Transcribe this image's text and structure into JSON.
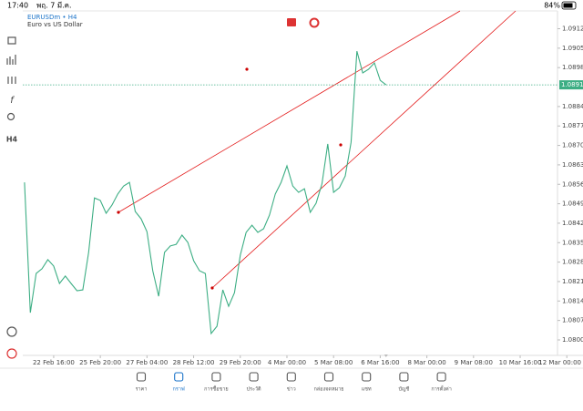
{
  "status_bar": {
    "time": "17:40",
    "date": "พฤ. 7 มี.ค.",
    "battery": "84%"
  },
  "chart_data": {
    "type": "line",
    "title": "EURUSDm • H4",
    "subtitle": "Euro vs US Dollar",
    "x": [
      0,
      1,
      2,
      3,
      4,
      5,
      6,
      7,
      8,
      9,
      10,
      11,
      12,
      13,
      14,
      15,
      16,
      17,
      18,
      19,
      20,
      21,
      22,
      23,
      24,
      25,
      26,
      27,
      28,
      29,
      30,
      31,
      32,
      33,
      34,
      35,
      36,
      37,
      38,
      39,
      40,
      41,
      42,
      43,
      44,
      45,
      46,
      47,
      48,
      49,
      50,
      51,
      52,
      53,
      54,
      55,
      56,
      57,
      58,
      59,
      60,
      61,
      62
    ],
    "series": [
      {
        "color": "#3dae84",
        "values": [
          1.08567,
          1.08098,
          1.08239,
          1.08256,
          1.08289,
          1.08266,
          1.08203,
          1.0823,
          1.08203,
          1.08177,
          1.0818,
          1.08315,
          1.08511,
          1.08502,
          1.08456,
          1.08485,
          1.08525,
          1.08554,
          1.08567,
          1.08462,
          1.08436,
          1.0839,
          1.08249,
          1.08157,
          1.08315,
          1.08338,
          1.08344,
          1.08377,
          1.08351,
          1.08285,
          1.08249,
          1.08239,
          1.08023,
          1.08049,
          1.0818,
          1.08121,
          1.0817,
          1.08305,
          1.08387,
          1.08413,
          1.08387,
          1.084,
          1.08449,
          1.08525,
          1.08567,
          1.08626,
          1.08554,
          1.08531,
          1.08544,
          1.08459,
          1.08492,
          1.08561,
          1.08705,
          1.08531,
          1.08548,
          1.0859,
          1.08711,
          1.09039,
          1.08961,
          1.08974,
          1.08997,
          1.08934,
          1.08918
        ]
      }
    ],
    "xlim": [
      -0.3,
      91.4
    ],
    "xticks": [
      {
        "value": 5,
        "label": "22 Feb 16:00"
      },
      {
        "value": 13,
        "label": "25 Feb 20:00"
      },
      {
        "value": 21,
        "label": "27 Feb 04:00"
      },
      {
        "value": 29,
        "label": "28 Feb 12:00"
      },
      {
        "value": 37,
        "label": "29 Feb 20:00"
      },
      {
        "value": 45,
        "label": "4 Mar 00:00"
      },
      {
        "value": 53,
        "label": "5 Mar 08:00"
      },
      {
        "value": 61,
        "label": "6 Mar 16:00"
      },
      {
        "value": 69,
        "label": "8 Mar 00:00"
      },
      {
        "value": 77,
        "label": "9 Mar 08:00"
      },
      {
        "value": 85,
        "label": "10 Mar 16:00"
      },
      {
        "value": 93,
        "label": "12 Mar 00:00"
      }
    ],
    "ylim": [
      1.07977,
      1.09184
    ],
    "yticks": [
      {
        "value": 1.0912,
        "label": "1.09120"
      },
      {
        "value": 1.0905,
        "label": "1.09050"
      },
      {
        "value": 1.0898,
        "label": "1.08980"
      },
      {
        "value": 1.0884,
        "label": "1.08840"
      },
      {
        "value": 1.0877,
        "label": "1.08770"
      },
      {
        "value": 1.087,
        "label": "1.08700"
      },
      {
        "value": 1.0863,
        "label": "1.08630"
      },
      {
        "value": 1.0856,
        "label": "1.08560"
      },
      {
        "value": 1.0849,
        "label": "1.08490"
      },
      {
        "value": 1.0842,
        "label": "1.08420"
      },
      {
        "value": 1.0835,
        "label": "1.08350"
      },
      {
        "value": 1.0828,
        "label": "1.08280"
      },
      {
        "value": 1.0821,
        "label": "1.08210"
      },
      {
        "value": 1.0814,
        "label": "1.08140"
      },
      {
        "value": 1.0807,
        "label": "1.08070"
      },
      {
        "value": 1.08,
        "label": "1.08000"
      }
    ],
    "current_price": 1.08918,
    "grid": false
  },
  "toolbar": {
    "timeframe": "H4",
    "function": "f"
  },
  "tab_bar": {
    "active": 1,
    "tabs": [
      "ราคา",
      "กราฟ",
      "การซื้อขาย",
      "ประวัติ",
      "ข่าว",
      "กล่องจดหมาย",
      "แชท",
      "บัญชี",
      "การตั้งค่า"
    ]
  }
}
